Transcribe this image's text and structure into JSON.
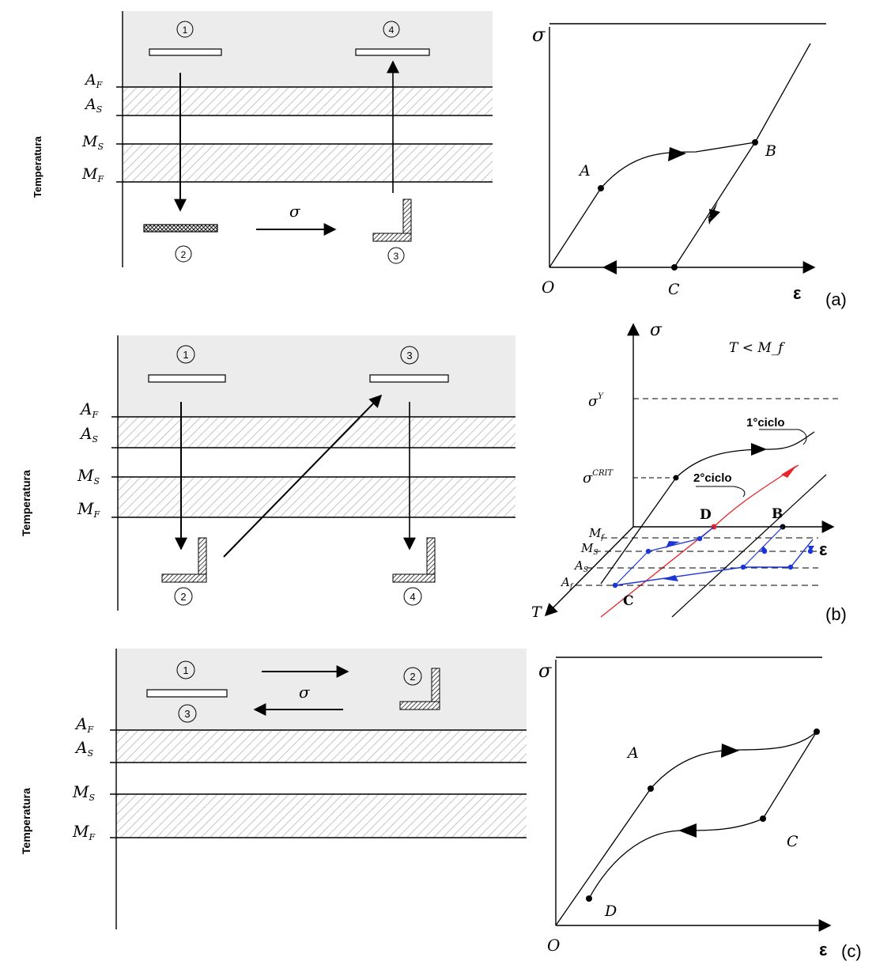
{
  "colors": {
    "shade": "#ececec",
    "hatch": "#b8b8b8",
    "ink": "#000000",
    "red": "#e8262a",
    "blue": "#1b35d6"
  },
  "panels": [
    {
      "id": "a",
      "tag": "(a)",
      "y_axis_label": "Temperatura",
      "levels": [
        "A_F",
        "A_S",
        "M_S",
        "M_F"
      ],
      "states": [
        "1",
        "2",
        "3",
        "4"
      ],
      "arrow_label": "σ",
      "graph": {
        "y_axis": "σ",
        "x_axis": "ε",
        "origin": "O",
        "points": [
          "A",
          "B",
          "C"
        ]
      }
    },
    {
      "id": "b",
      "tag": "(b)",
      "y_axis_label": "Temperatura",
      "levels": [
        "A_F",
        "A_S",
        "M_S",
        "M_F"
      ],
      "states": [
        "1",
        "2",
        "3",
        "4"
      ],
      "graph": {
        "y_axis": "σ",
        "x_axis": "ε",
        "t_axis": "T",
        "condition": "T < M_f",
        "sigma_y": "σ^Y",
        "sigma_crit": "σ^CRIT",
        "cycle1": "1°ciclo",
        "cycle2": "2°ciclo",
        "points": [
          "B",
          "C",
          "D"
        ],
        "t_levels": [
          "M_f",
          "M_S",
          "A_S",
          "A_f"
        ]
      }
    },
    {
      "id": "c",
      "tag": "(c)",
      "y_axis_label": "Temperatura",
      "levels": [
        "A_F",
        "A_S",
        "M_S",
        "M_F"
      ],
      "states": [
        "1",
        "2",
        "3"
      ],
      "arrow_label": "σ",
      "graph": {
        "y_axis": "σ",
        "x_axis": "ε",
        "origin": "O",
        "points": [
          "A",
          "C",
          "D"
        ]
      }
    }
  ]
}
